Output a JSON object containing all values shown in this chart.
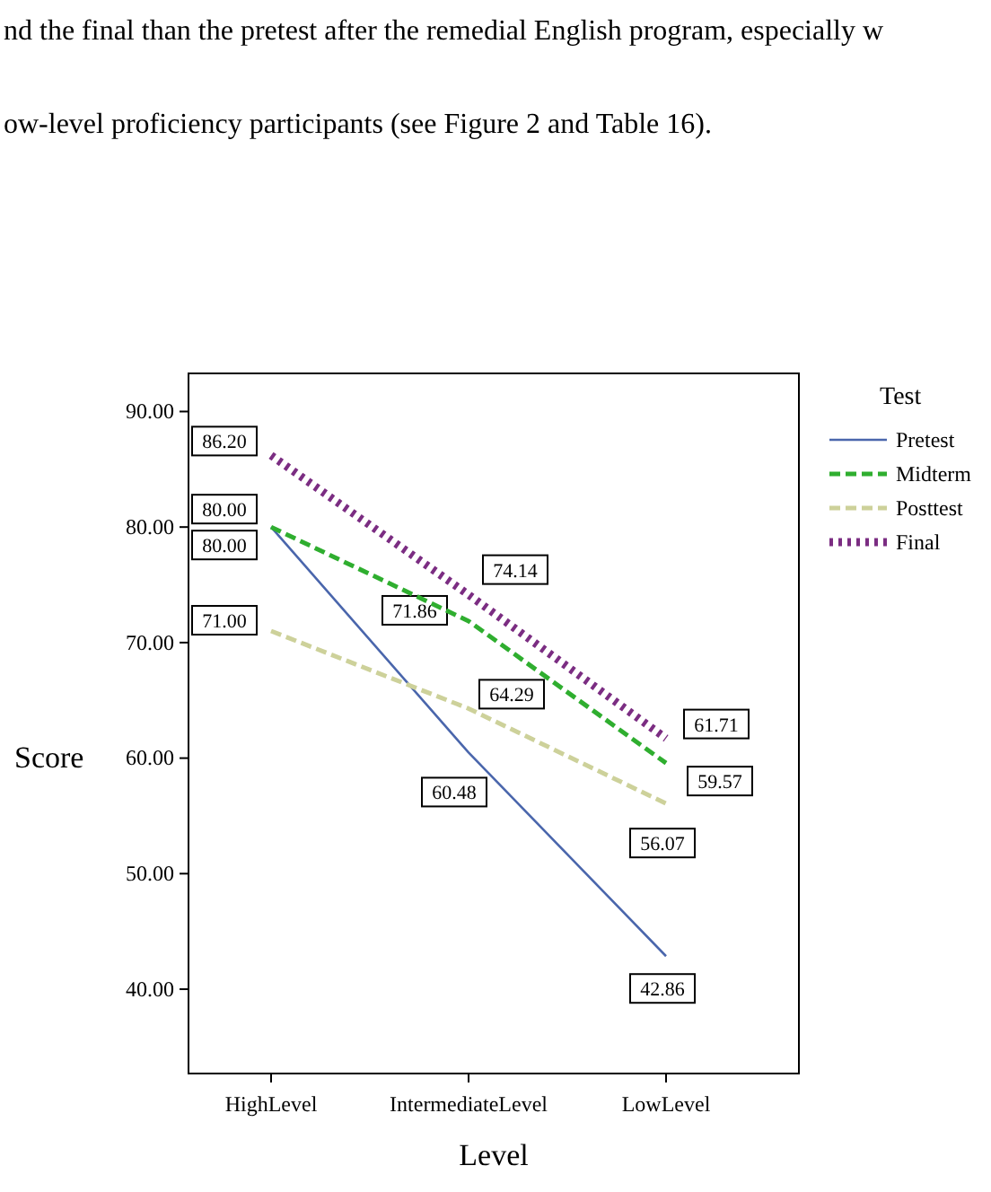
{
  "chart_data": {
    "type": "line",
    "xlabel": "Level",
    "ylabel": "Score",
    "legend_title": "Test",
    "legend": "right",
    "grid": false,
    "categories": [
      "HighLevel",
      "IntermediateLevel",
      "LowLevel"
    ],
    "ylim": [
      32.7,
      93.3
    ],
    "yticks": [
      {
        "value": 40,
        "label": "40.00"
      },
      {
        "value": 50,
        "label": "50.00"
      },
      {
        "value": 60,
        "label": "60.00"
      },
      {
        "value": 70,
        "label": "70.00"
      },
      {
        "value": 80,
        "label": "80.00"
      },
      {
        "value": 90,
        "label": "90.00"
      }
    ],
    "series": [
      {
        "name": "Pretest",
        "color": "#4a66ac",
        "line_style": "solid",
        "values": [
          80.0,
          60.48,
          42.86
        ],
        "value_labels": [
          "80.00",
          "60.48",
          "42.86"
        ]
      },
      {
        "name": "Midterm",
        "color": "#2fae2f",
        "line_style": "dashed",
        "values": [
          80.0,
          71.86,
          59.57
        ],
        "value_labels": [
          "80.00",
          "71.86",
          "59.57"
        ]
      },
      {
        "name": "Posttest",
        "color": "#cdd19a",
        "line_style": "dashed",
        "values": [
          71.0,
          64.29,
          56.07
        ],
        "value_labels": [
          "71.00",
          "64.29",
          "56.07"
        ]
      },
      {
        "name": "Final",
        "color": "#7b2d82",
        "line_style": "dotted",
        "values": [
          86.2,
          74.14,
          61.71
        ],
        "value_labels": [
          "86.20",
          "74.14",
          "61.71"
        ]
      }
    ],
    "annotations": [
      "nd the final than the pretest after the remedial English program, especially w",
      "ow-level proficiency participants (see Figure 2 and Table 16)."
    ]
  }
}
